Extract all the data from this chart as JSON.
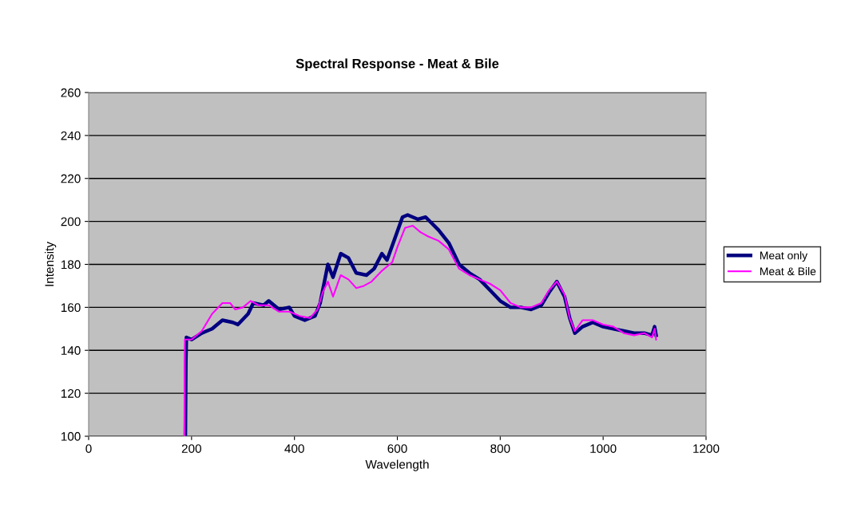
{
  "chart_data": {
    "type": "line",
    "title": "Spectral Response - Meat & Bile",
    "xlabel": "Wavelength",
    "ylabel": "Intensity",
    "xlim": [
      0,
      1200
    ],
    "xticks": [
      0,
      200,
      400,
      600,
      800,
      1000,
      1200
    ],
    "ylim": [
      100,
      260
    ],
    "yticks": [
      100,
      120,
      140,
      160,
      180,
      200,
      220,
      240,
      260
    ],
    "grid": "y",
    "legend": "right",
    "marker": "none",
    "line_style": "solid",
    "series": [
      {
        "name": "Meat only",
        "color": "#000080",
        "x": [
          188,
          189,
          190,
          200,
          220,
          240,
          260,
          280,
          290,
          310,
          320,
          340,
          350,
          370,
          390,
          400,
          420,
          440,
          450,
          465,
          475,
          490,
          505,
          520,
          540,
          555,
          570,
          580,
          595,
          610,
          620,
          640,
          655,
          680,
          700,
          720,
          740,
          760,
          780,
          800,
          820,
          840,
          860,
          880,
          895,
          910,
          925,
          935,
          945,
          960,
          980,
          1000,
          1020,
          1040,
          1060,
          1080,
          1095,
          1100,
          1103
        ],
        "values": [
          100,
          135,
          146,
          145,
          148,
          150,
          154,
          153,
          152,
          157,
          162,
          161,
          163,
          159,
          160,
          156,
          154,
          156,
          162,
          180,
          174,
          185,
          183,
          176,
          175,
          178,
          185,
          182,
          192,
          202,
          203,
          201,
          202,
          196,
          190,
          180,
          176,
          173,
          168,
          163,
          160,
          160,
          159,
          161,
          167,
          172,
          165,
          155,
          148,
          151,
          153,
          151,
          150,
          149,
          148,
          148,
          147,
          151,
          147
        ]
      },
      {
        "name": "Meat & Bile",
        "color": "#ff00ff",
        "x": [
          186,
          187,
          200,
          220,
          240,
          260,
          275,
          285,
          300,
          315,
          330,
          350,
          370,
          390,
          410,
          430,
          445,
          455,
          465,
          475,
          490,
          505,
          520,
          535,
          550,
          570,
          590,
          600,
          615,
          630,
          645,
          660,
          680,
          700,
          720,
          740,
          760,
          780,
          800,
          820,
          840,
          860,
          880,
          895,
          910,
          925,
          935,
          945,
          960,
          980,
          1000,
          1020,
          1040,
          1060,
          1080,
          1095,
          1100,
          1103
        ],
        "values": [
          100,
          145,
          145,
          149,
          157,
          162,
          162,
          159,
          160,
          163,
          161,
          161,
          158,
          158,
          156,
          155,
          159,
          167,
          172,
          165,
          175,
          173,
          169,
          170,
          172,
          177,
          181,
          188,
          197,
          198,
          195,
          193,
          191,
          187,
          178,
          175,
          173,
          171,
          168,
          162,
          160,
          160,
          162,
          168,
          172,
          166,
          155,
          149,
          154,
          154,
          152,
          151,
          148,
          147,
          148,
          146,
          150,
          145
        ]
      }
    ]
  }
}
